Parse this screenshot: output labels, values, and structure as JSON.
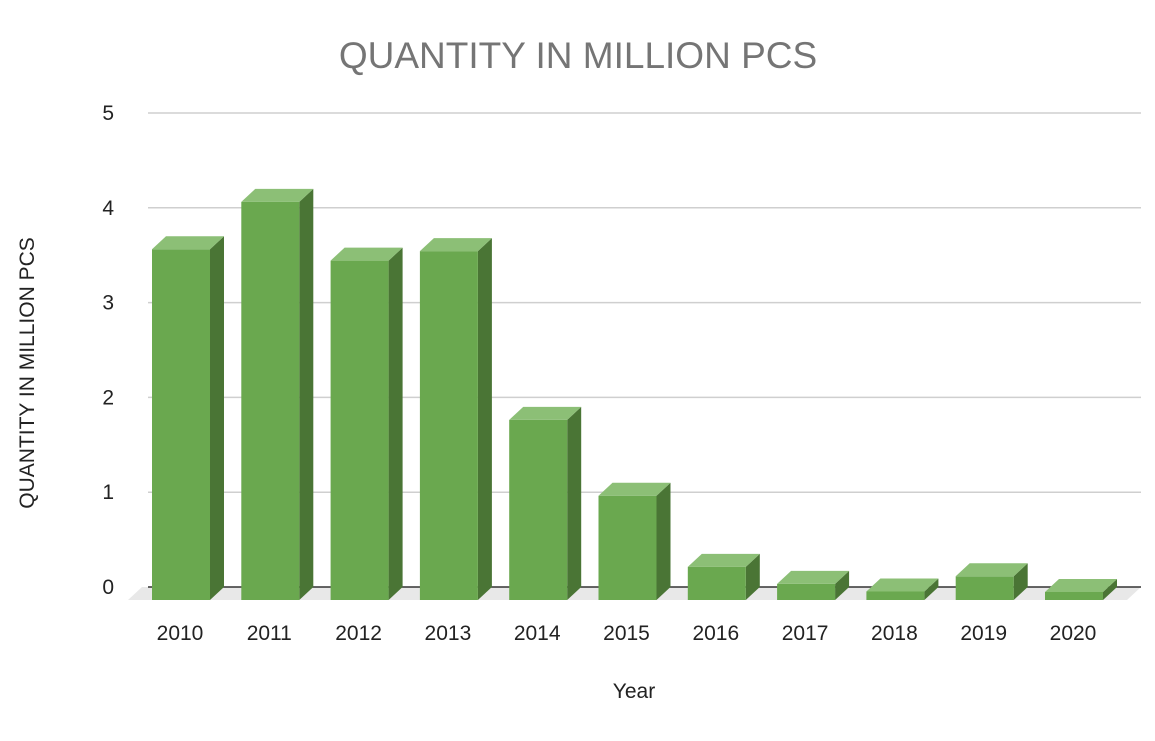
{
  "chart_data": {
    "type": "bar",
    "style": "3d",
    "title": "QUANTITY IN MILLION PCS",
    "xlabel": "Year",
    "ylabel": "QUANTITY IN MILLION PCS",
    "categories": [
      "2010",
      "2011",
      "2012",
      "2013",
      "2014",
      "2015",
      "2016",
      "2017",
      "2018",
      "2019",
      "2020"
    ],
    "values": [
      3.7,
      4.2,
      3.58,
      3.68,
      1.9,
      1.1,
      0.35,
      0.17,
      0.09,
      0.25,
      -0.08
    ],
    "ylim": [
      0,
      5
    ],
    "yticks": [
      "0",
      "1",
      "2",
      "3",
      "4",
      "5"
    ],
    "grid": true,
    "legend": "none",
    "colors": {
      "bar_front": "#6aa84f",
      "bar_top": "#8cbf76",
      "bar_side": "#4a7535",
      "floor": "#e8e8e8",
      "title": "#757575"
    }
  }
}
